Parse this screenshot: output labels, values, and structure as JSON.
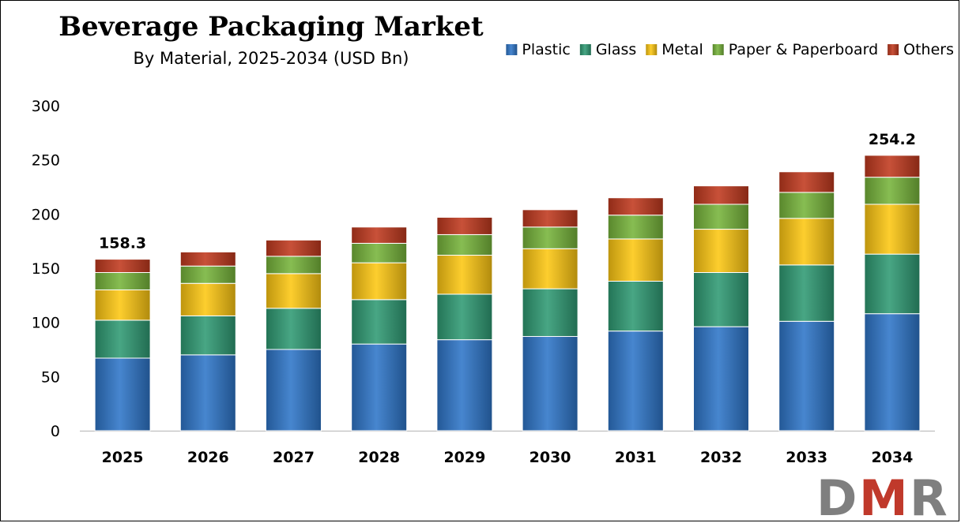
{
  "chart_data": {
    "type": "bar",
    "stacked": true,
    "title": "Beverage Packaging Market",
    "subtitle": "By Material, 2025-2034 (USD Bn)",
    "xlabel": "",
    "ylabel": "",
    "ylim": [
      0,
      300
    ],
    "yticks": [
      "0",
      "50",
      "100",
      "150",
      "200",
      "250",
      "300"
    ],
    "categories": [
      "2025",
      "2026",
      "2027",
      "2028",
      "2029",
      "2030",
      "2031",
      "2032",
      "2033",
      "2034"
    ],
    "series": [
      {
        "name": "Plastic",
        "color": "#2e75c8",
        "values": [
          67,
          70,
          75,
          80,
          84,
          87,
          92,
          96,
          101,
          108
        ]
      },
      {
        "name": "Glass",
        "color": "#2f9a73",
        "values": [
          35,
          36,
          38,
          41,
          42,
          44,
          46,
          50,
          52,
          55
        ]
      },
      {
        "name": "Metal",
        "color": "#fdc712",
        "values": [
          28,
          30,
          32,
          34,
          36,
          37,
          39,
          40,
          43,
          46
        ]
      },
      {
        "name": "Paper & Paperboard",
        "color": "#77b43a",
        "values": [
          16,
          16,
          16,
          18,
          19,
          20,
          22,
          23,
          24,
          25
        ]
      },
      {
        "name": "Others",
        "color": "#c0391e",
        "values": [
          12.3,
          13,
          15,
          15,
          16,
          16,
          16,
          17,
          19,
          20.2
        ]
      }
    ],
    "data_labels": [
      {
        "category": "2025",
        "text": "158.3"
      },
      {
        "category": "2034",
        "text": "254.2"
      }
    ],
    "legend_position": "top-right",
    "grid": false
  },
  "logo": {
    "text": "DMR",
    "colors": [
      "#7f7f7f",
      "#c0392b",
      "#7f7f7f"
    ]
  }
}
